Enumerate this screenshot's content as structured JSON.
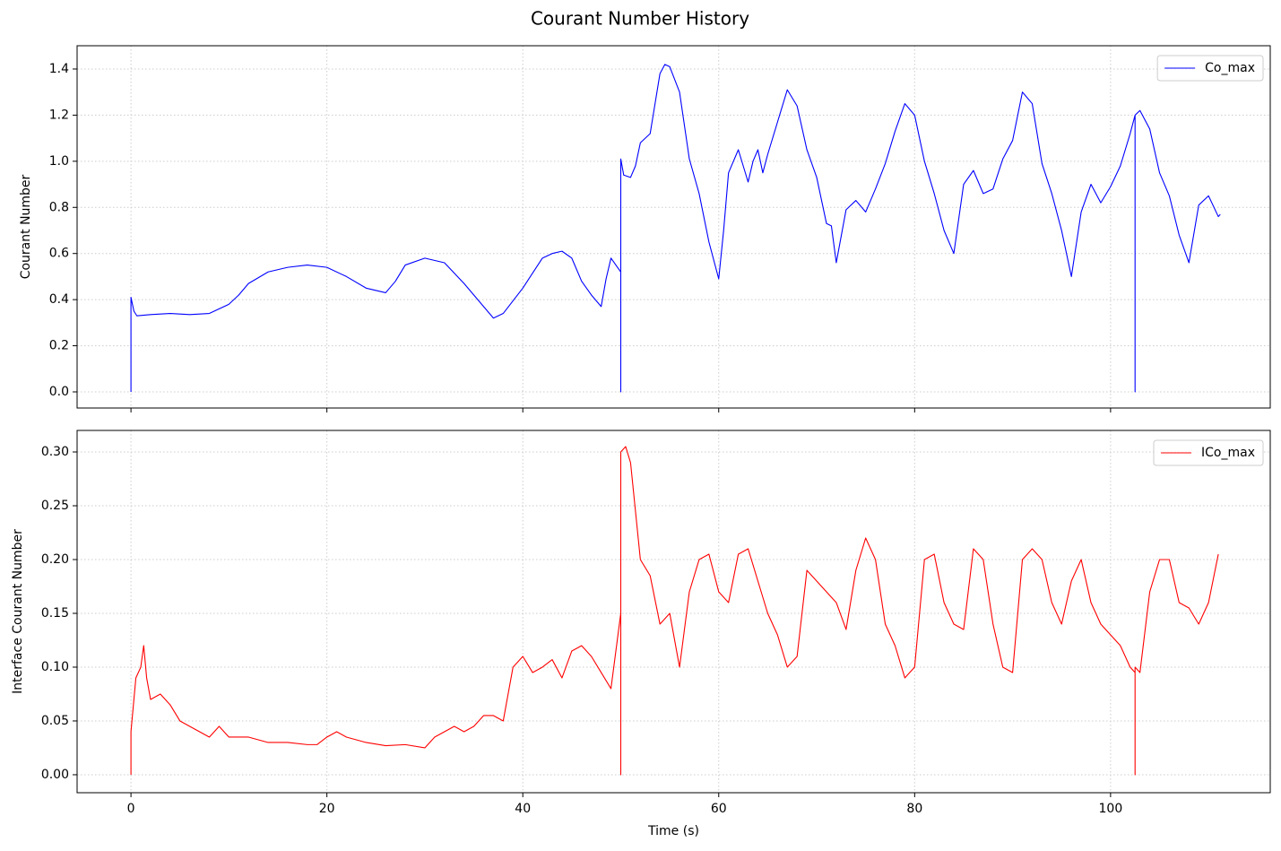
{
  "title": "Courant Number History",
  "chart_data": [
    {
      "type": "line",
      "ylabel": "Courant Number",
      "grid": true,
      "legend": "upper right",
      "xlim": [
        -5.5,
        116.3
      ],
      "xticks": [
        0,
        20,
        40,
        60,
        80,
        100
      ],
      "ylim": [
        -0.07,
        1.501
      ],
      "yticks": [
        {
          "value": 0,
          "label": "0.0"
        },
        {
          "value": 0.2,
          "label": "0.2"
        },
        {
          "value": 0.4,
          "label": "0.4"
        },
        {
          "value": 0.6,
          "label": "0.6"
        },
        {
          "value": 0.8,
          "label": "0.8"
        },
        {
          "value": 1.0,
          "label": "1.0"
        },
        {
          "value": 1.2,
          "label": "1.2"
        },
        {
          "value": 1.4,
          "label": "1.4"
        }
      ],
      "x": [
        0,
        0,
        0.3,
        0.6,
        2,
        4,
        6,
        8,
        10,
        11,
        12,
        14,
        16,
        18,
        20,
        22,
        24,
        26,
        27,
        28,
        30,
        32,
        34,
        36,
        37,
        38,
        40,
        42,
        43,
        44,
        45,
        46,
        47,
        48,
        48.5,
        49,
        50,
        50,
        50,
        50.3,
        51,
        51.5,
        52,
        53,
        54,
        54.5,
        55,
        56,
        57,
        58,
        59,
        60,
        60.5,
        61,
        62,
        63,
        63.5,
        64,
        64.5,
        65,
        66,
        67,
        68,
        69,
        70,
        71,
        71.5,
        72,
        73,
        74,
        75,
        76,
        77,
        78,
        79,
        80,
        81,
        82,
        83,
        84,
        85,
        86,
        87,
        88,
        89,
        90,
        91,
        92,
        93,
        94,
        95,
        96,
        97,
        98,
        99,
        100,
        101,
        102,
        102.5,
        102.5,
        102.5,
        103,
        104,
        105,
        106,
        107,
        108,
        109,
        110,
        111,
        111.2
      ],
      "series": [
        {
          "name": "Co_max",
          "color": "#0000ff",
          "values": [
            0,
            0.41,
            0.35,
            0.33,
            0.335,
            0.34,
            0.335,
            0.34,
            0.38,
            0.42,
            0.47,
            0.52,
            0.54,
            0.55,
            0.54,
            0.5,
            0.45,
            0.43,
            0.48,
            0.55,
            0.58,
            0.56,
            0.47,
            0.37,
            0.32,
            0.34,
            0.45,
            0.58,
            0.6,
            0.61,
            0.58,
            0.48,
            0.42,
            0.37,
            0.49,
            0.58,
            0.52,
            0,
            1.01,
            0.94,
            0.93,
            0.98,
            1.08,
            1.12,
            1.38,
            1.42,
            1.41,
            1.3,
            1.01,
            0.86,
            0.65,
            0.49,
            0.7,
            0.95,
            1.05,
            0.91,
            1.0,
            1.05,
            0.95,
            1.03,
            1.17,
            1.31,
            1.24,
            1.05,
            0.93,
            0.73,
            0.72,
            0.56,
            0.79,
            0.83,
            0.78,
            0.88,
            0.99,
            1.13,
            1.25,
            1.2,
            1.0,
            0.86,
            0.7,
            0.6,
            0.9,
            0.96,
            0.86,
            0.88,
            1.01,
            1.09,
            1.3,
            1.25,
            0.99,
            0.86,
            0.7,
            0.5,
            0.78,
            0.9,
            0.82,
            0.89,
            0.98,
            1.12,
            1.2,
            0,
            1.2,
            1.22,
            1.14,
            0.95,
            0.85,
            0.68,
            0.56,
            0.81,
            0.85,
            0.76,
            0.77
          ]
        }
      ]
    },
    {
      "type": "line",
      "xlabel": "Time (s)",
      "ylabel": "Interface Courant Number",
      "grid": true,
      "legend": "upper right",
      "xlim": [
        -5.5,
        116.3
      ],
      "xticks": [
        0,
        20,
        40,
        60,
        80,
        100
      ],
      "ylim": [
        -0.0167,
        0.32
      ],
      "yticks": [
        {
          "value": 0,
          "label": "0.00"
        },
        {
          "value": 0.05,
          "label": "0.05"
        },
        {
          "value": 0.1,
          "label": "0.10"
        },
        {
          "value": 0.15,
          "label": "0.15"
        },
        {
          "value": 0.2,
          "label": "0.20"
        },
        {
          "value": 0.25,
          "label": "0.25"
        },
        {
          "value": 0.3,
          "label": "0.30"
        }
      ],
      "x": [
        0,
        0,
        0.5,
        1,
        1.3,
        1.6,
        2,
        3,
        4,
        5,
        6,
        7,
        8,
        9,
        10,
        12,
        14,
        16,
        18,
        19,
        20,
        21,
        22,
        24,
        26,
        28,
        30,
        31,
        32,
        33,
        34,
        35,
        36,
        37,
        38,
        39,
        40,
        41,
        42,
        43,
        44,
        45,
        46,
        47,
        48,
        49,
        50,
        50,
        50,
        50.5,
        51,
        52,
        53,
        54,
        55,
        56,
        57,
        58,
        59,
        60,
        61,
        62,
        63,
        64,
        65,
        66,
        67,
        68,
        69,
        70,
        71,
        72,
        73,
        74,
        75,
        76,
        77,
        78,
        79,
        80,
        81,
        82,
        83,
        84,
        85,
        86,
        87,
        88,
        89,
        90,
        91,
        92,
        93,
        94,
        95,
        96,
        97,
        98,
        99,
        100,
        101,
        102,
        102.5,
        102.5,
        102.5,
        103,
        104,
        105,
        106,
        107,
        108,
        109,
        110,
        111
      ],
      "series": [
        {
          "name": "ICo_max",
          "color": "#ff0000",
          "values": [
            0,
            0.04,
            0.09,
            0.1,
            0.12,
            0.09,
            0.07,
            0.075,
            0.065,
            0.05,
            0.045,
            0.04,
            0.035,
            0.045,
            0.035,
            0.035,
            0.03,
            0.03,
            0.028,
            0.028,
            0.035,
            0.04,
            0.035,
            0.03,
            0.027,
            0.028,
            0.025,
            0.035,
            0.04,
            0.045,
            0.04,
            0.045,
            0.055,
            0.055,
            0.05,
            0.1,
            0.11,
            0.095,
            0.1,
            0.107,
            0.09,
            0.115,
            0.12,
            0.11,
            0.095,
            0.08,
            0.15,
            0,
            0.3,
            0.305,
            0.29,
            0.2,
            0.185,
            0.14,
            0.15,
            0.1,
            0.17,
            0.2,
            0.205,
            0.17,
            0.16,
            0.205,
            0.21,
            0.18,
            0.15,
            0.13,
            0.1,
            0.11,
            0.19,
            0.18,
            0.17,
            0.16,
            0.135,
            0.19,
            0.22,
            0.2,
            0.14,
            0.12,
            0.09,
            0.1,
            0.2,
            0.205,
            0.16,
            0.14,
            0.135,
            0.21,
            0.2,
            0.14,
            0.1,
            0.095,
            0.2,
            0.21,
            0.2,
            0.16,
            0.14,
            0.18,
            0.2,
            0.16,
            0.14,
            0.13,
            0.12,
            0.1,
            0.095,
            0,
            0.1,
            0.095,
            0.17,
            0.2,
            0.2,
            0.16,
            0.155,
            0.14,
            0.16,
            0.205
          ]
        }
      ]
    }
  ]
}
